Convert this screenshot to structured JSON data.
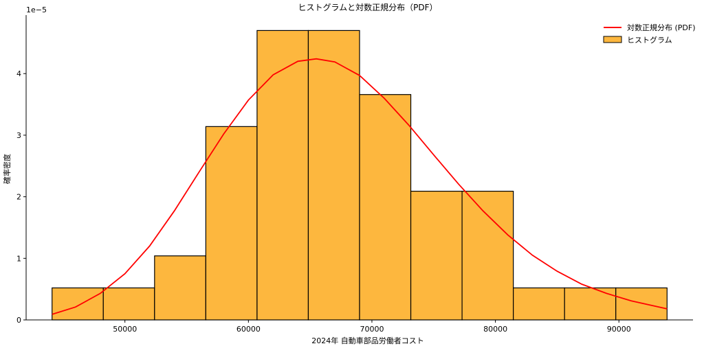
{
  "chart_data": {
    "type": "bar",
    "title": "ヒストグラムと対数正規分布（PDF）",
    "xlabel": "2024年 自動車部品労働者コスト",
    "ylabel": "確率密度",
    "y_offset_label": "1e−5",
    "y_scale": 1e-05,
    "xlim": [
      42000,
      96000
    ],
    "ylim": [
      0,
      4.95
    ],
    "x_ticks": [
      50000,
      60000,
      70000,
      80000,
      90000
    ],
    "y_ticks": [
      0,
      1,
      2,
      3,
      4
    ],
    "grid": false,
    "legend_position": "top-right",
    "colors": {
      "bar_fill": "#FDB73E",
      "bar_edge": "#000000",
      "pdf_line": "#FF0000"
    },
    "series": [
      {
        "name": "ヒストグラム",
        "kind": "histogram",
        "bins": [
          {
            "x0": 44100,
            "x1": 48250,
            "density": 0.52
          },
          {
            "x0": 48250,
            "x1": 52400,
            "density": 0.52
          },
          {
            "x0": 52400,
            "x1": 56550,
            "density": 1.04
          },
          {
            "x0": 56550,
            "x1": 60700,
            "density": 3.14
          },
          {
            "x0": 60700,
            "x1": 64850,
            "density": 4.7
          },
          {
            "x0": 64850,
            "x1": 69000,
            "density": 4.7
          },
          {
            "x0": 69000,
            "x1": 73150,
            "density": 3.66
          },
          {
            "x0": 73150,
            "x1": 77300,
            "density": 2.09
          },
          {
            "x0": 77300,
            "x1": 81450,
            "density": 2.09
          },
          {
            "x0": 81450,
            "x1": 85600,
            "density": 0.52
          },
          {
            "x0": 85600,
            "x1": 89750,
            "density": 0.52
          },
          {
            "x0": 89750,
            "x1": 93900,
            "density": 0.52
          }
        ]
      },
      {
        "name": "対数正規分布 (PDF)",
        "kind": "line",
        "x": [
          44100,
          46000,
          48000,
          50000,
          52000,
          54000,
          56000,
          58000,
          60000,
          62000,
          64000,
          65500,
          67000,
          69000,
          71000,
          73000,
          75000,
          77000,
          79000,
          81000,
          83000,
          85000,
          87000,
          89000,
          91000,
          93900
        ],
        "y": [
          0.09,
          0.21,
          0.43,
          0.75,
          1.2,
          1.77,
          2.4,
          3.02,
          3.57,
          3.98,
          4.2,
          4.24,
          4.19,
          3.97,
          3.6,
          3.16,
          2.68,
          2.21,
          1.77,
          1.38,
          1.05,
          0.79,
          0.58,
          0.43,
          0.31,
          0.18
        ]
      }
    ]
  }
}
